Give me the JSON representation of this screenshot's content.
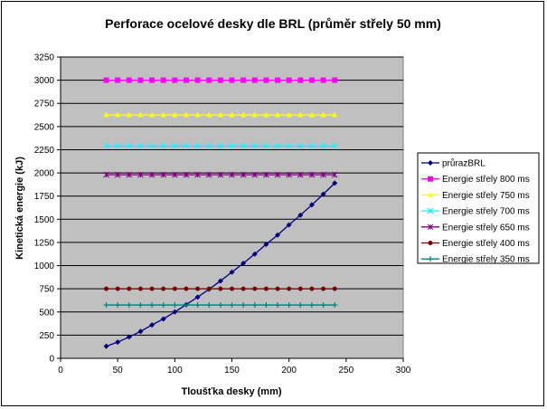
{
  "chart_data": {
    "type": "line",
    "title": "Perforace ocelové desky dle BRL (průměr střely 50 mm)",
    "xlabel": "Tloušťka desky (mm)",
    "ylabel": "Kinetická energie (kJ)",
    "xlim": [
      0,
      300
    ],
    "ylim": [
      0,
      3250
    ],
    "xticks": [
      0,
      50,
      100,
      150,
      200,
      250,
      300
    ],
    "yticks": [
      0,
      250,
      500,
      750,
      1000,
      1250,
      1500,
      1750,
      2000,
      2250,
      2500,
      2750,
      3000,
      3250
    ],
    "grid": "horizontal",
    "legend": "right",
    "x": [
      40,
      50,
      60,
      70,
      80,
      90,
      100,
      110,
      120,
      130,
      140,
      150,
      160,
      170,
      180,
      190,
      200,
      210,
      220,
      230,
      240
    ],
    "series": [
      {
        "name": "průrazBRL",
        "color": "#000080",
        "marker": "diamond",
        "values": [
          130,
          175,
          230,
          290,
          360,
          425,
          500,
          580,
          660,
          745,
          835,
          930,
          1025,
          1125,
          1230,
          1330,
          1440,
          1545,
          1655,
          1770,
          1890
        ]
      },
      {
        "name": "Energie střely 800 ms",
        "color": "#FF00FF",
        "marker": "square",
        "values": [
          3000,
          3000,
          3000,
          3000,
          3000,
          3000,
          3000,
          3000,
          3000,
          3000,
          3000,
          3000,
          3000,
          3000,
          3000,
          3000,
          3000,
          3000,
          3000,
          3000,
          3000
        ]
      },
      {
        "name": "Energie střely 750 ms",
        "color": "#FFFF00",
        "marker": "triangle",
        "values": [
          2625,
          2625,
          2625,
          2625,
          2625,
          2625,
          2625,
          2625,
          2625,
          2625,
          2625,
          2625,
          2625,
          2625,
          2625,
          2625,
          2625,
          2625,
          2625,
          2625,
          2625
        ]
      },
      {
        "name": "Energie střely 700 ms",
        "color": "#00FFFF",
        "marker": "x",
        "values": [
          2290,
          2290,
          2290,
          2290,
          2290,
          2290,
          2290,
          2290,
          2290,
          2290,
          2290,
          2290,
          2290,
          2290,
          2290,
          2290,
          2290,
          2290,
          2290,
          2290,
          2290
        ]
      },
      {
        "name": "Energie střely 650 ms",
        "color": "#800080",
        "marker": "star",
        "values": [
          1980,
          1980,
          1980,
          1980,
          1980,
          1980,
          1980,
          1980,
          1980,
          1980,
          1980,
          1980,
          1980,
          1980,
          1980,
          1980,
          1980,
          1980,
          1980,
          1980,
          1980
        ]
      },
      {
        "name": "Energie střely 400 ms",
        "color": "#800000",
        "marker": "circle",
        "values": [
          750,
          750,
          750,
          750,
          750,
          750,
          750,
          750,
          750,
          750,
          750,
          750,
          750,
          750,
          750,
          750,
          750,
          750,
          750,
          750,
          750
        ]
      },
      {
        "name": "Energie střely 350 ms",
        "color": "#008080",
        "marker": "plus",
        "values": [
          575,
          575,
          575,
          575,
          575,
          575,
          575,
          575,
          575,
          575,
          575,
          575,
          575,
          575,
          575,
          575,
          575,
          575,
          575,
          575,
          575
        ]
      }
    ],
    "colors": {
      "plot_background": "#C0C0C0",
      "gridline": "#000000"
    }
  }
}
